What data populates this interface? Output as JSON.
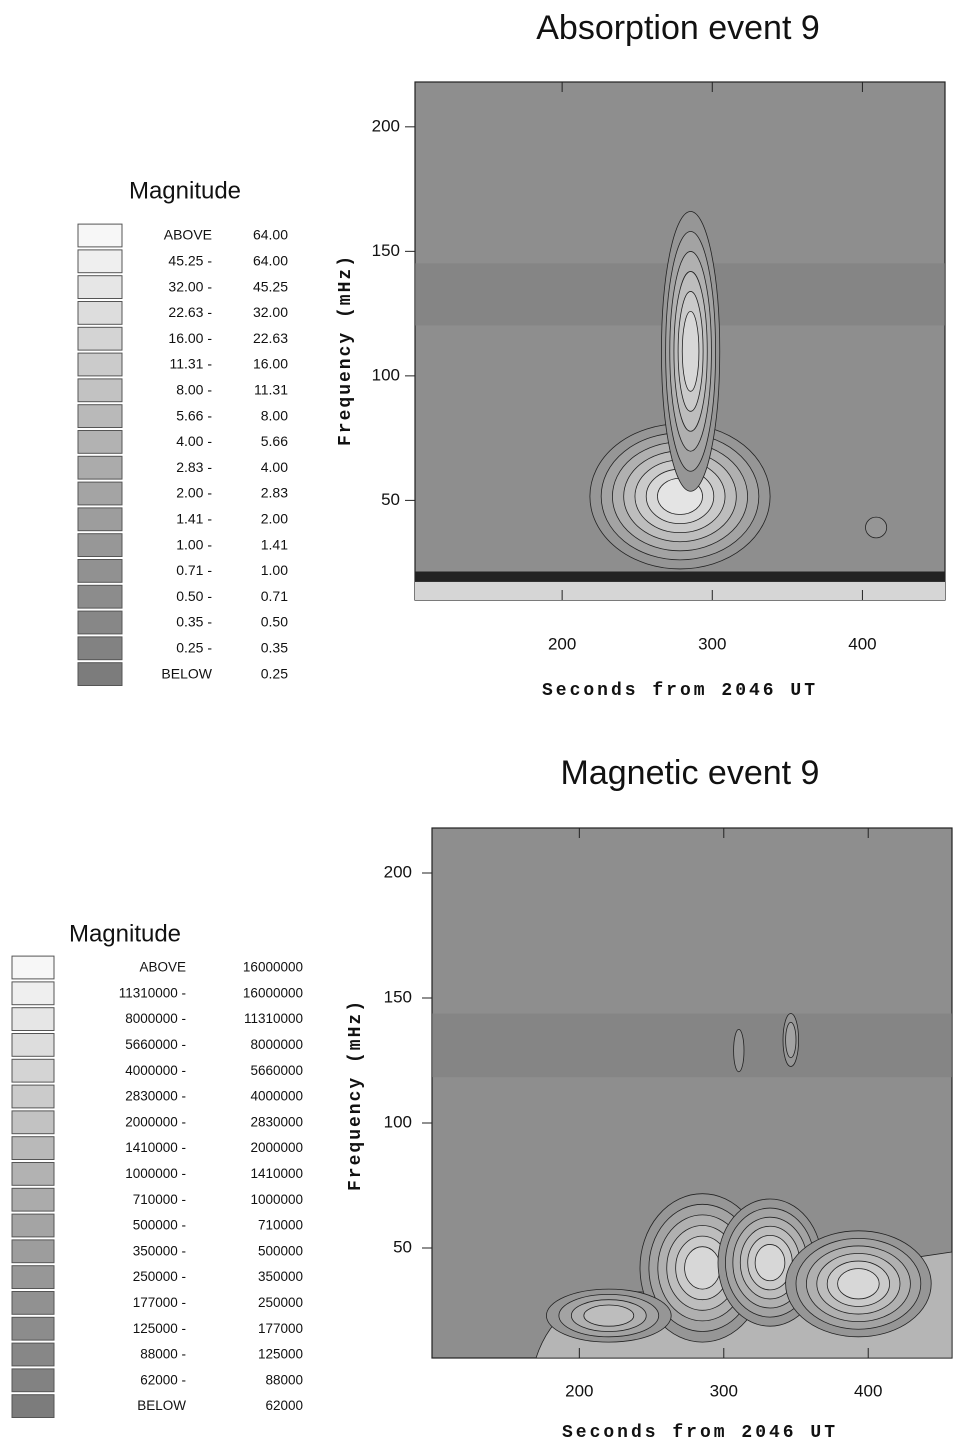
{
  "chart_data": [
    {
      "type": "contour",
      "title": "Absorption event 9",
      "xlabel": "Seconds from 2046 UT",
      "ylabel": "Frequency (mHz)",
      "xlim": [
        102,
        455
      ],
      "ylim": [
        10,
        218
      ],
      "xticks": [
        200,
        300,
        400
      ],
      "yticks": [
        50,
        100,
        150,
        200
      ],
      "legend": {
        "title": "Magnitude",
        "rows": [
          {
            "low": "ABOVE",
            "high": "64.00"
          },
          {
            "low": "45.25 -",
            "high": "64.00"
          },
          {
            "low": "32.00 -",
            "high": "45.25"
          },
          {
            "low": "22.63 -",
            "high": "32.00"
          },
          {
            "low": "16.00 -",
            "high": "22.63"
          },
          {
            "low": "11.31 -",
            "high": "16.00"
          },
          {
            "low": "8.00 -",
            "high": "11.31"
          },
          {
            "low": "5.66 -",
            "high": "8.00"
          },
          {
            "low": "4.00 -",
            "high": "5.66"
          },
          {
            "low": "2.83 -",
            "high": "4.00"
          },
          {
            "low": "2.00 -",
            "high": "2.83"
          },
          {
            "low": "1.41 -",
            "high": "2.00"
          },
          {
            "low": "1.00 -",
            "high": "1.41"
          },
          {
            "low": "0.71 -",
            "high": "1.00"
          },
          {
            "low": "0.50 -",
            "high": "0.71"
          },
          {
            "low": "0.35 -",
            "high": "0.50"
          },
          {
            "low": "0.25 -",
            "high": "0.35"
          },
          {
            "low": "BELOW",
            "high": "0.25"
          }
        ],
        "colors": [
          "#f7f7f7",
          "#efefef",
          "#e6e6e6",
          "#dddddd",
          "#d4d4d4",
          "#cbcbcb",
          "#c2c2c2",
          "#b9b9b9",
          "#b2b2b2",
          "#ababab",
          "#a4a4a4",
          "#9d9d9d",
          "#979797",
          "#919191",
          "#8c8c8c",
          "#878787",
          "#828282",
          "#7c7c7c"
        ]
      }
    },
    {
      "type": "contour",
      "title": "Magnetic event 9",
      "xlabel": "Seconds from 2046 UT",
      "ylabel": "Frequency (mHz)",
      "xlim": [
        98,
        458
      ],
      "ylim": [
        6,
        218
      ],
      "xticks": [
        200,
        300,
        400
      ],
      "yticks": [
        50,
        100,
        150,
        200
      ],
      "legend": {
        "title": "Magnitude",
        "rows": [
          {
            "low": "ABOVE",
            "high": "16000000"
          },
          {
            "low": "11310000 -",
            "high": "16000000"
          },
          {
            "low": "8000000 -",
            "high": "11310000"
          },
          {
            "low": "5660000 -",
            "high": "8000000"
          },
          {
            "low": "4000000 -",
            "high": "5660000"
          },
          {
            "low": "2830000 -",
            "high": "4000000"
          },
          {
            "low": "2000000 -",
            "high": "2830000"
          },
          {
            "low": "1410000 -",
            "high": "2000000"
          },
          {
            "low": "1000000 -",
            "high": "1410000"
          },
          {
            "low": "710000 -",
            "high": "1000000"
          },
          {
            "low": "500000 -",
            "high": "710000"
          },
          {
            "low": "350000 -",
            "high": "500000"
          },
          {
            "low": "250000 -",
            "high": "350000"
          },
          {
            "low": "177000 -",
            "high": "250000"
          },
          {
            "low": "125000 -",
            "high": "177000"
          },
          {
            "low": "88000 -",
            "high": "125000"
          },
          {
            "low": "62000 -",
            "high": "88000"
          },
          {
            "low": "BELOW",
            "high": "62000"
          }
        ],
        "colors": [
          "#f7f7f7",
          "#efefef",
          "#e6e6e6",
          "#dddddd",
          "#d4d4d4",
          "#cbcbcb",
          "#c2c2c2",
          "#b9b9b9",
          "#b2b2b2",
          "#ababab",
          "#a4a4a4",
          "#9d9d9d",
          "#979797",
          "#919191",
          "#8c8c8c",
          "#878787",
          "#828282",
          "#7c7c7c"
        ]
      }
    }
  ]
}
